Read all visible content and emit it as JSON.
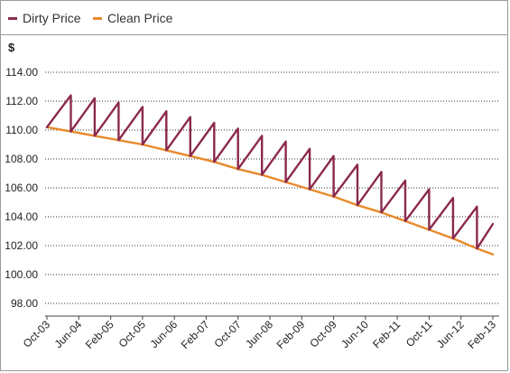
{
  "chart_data": {
    "type": "line",
    "ylabel": "$",
    "y_ticks": [
      "114.00",
      "112.00",
      "110.00",
      "108.00",
      "106.00",
      "104.00",
      "102.00",
      "100.00",
      "98.00"
    ],
    "ylim": [
      97,
      114.5
    ],
    "x_tick_labels": [
      "Oct-03",
      "Jun-04",
      "Feb-05",
      "Oct-05",
      "Jun-06",
      "Feb-07",
      "Oct-07",
      "Jun-08",
      "Feb-09",
      "Oct-09",
      "Jun-10",
      "Feb-11",
      "Oct-11",
      "Jun-12",
      "Feb-13"
    ],
    "grid": "horizontal dotted",
    "legend_position": "top",
    "series": [
      {
        "name": "Dirty Price",
        "color": "#8b2a4e",
        "x": [
          "Oct-03",
          "Jan-04",
          "Apr-04",
          "Apr-04",
          "Oct-04",
          "Oct-04",
          "Apr-05",
          "Apr-05",
          "Oct-05",
          "Oct-05",
          "Apr-06",
          "Apr-06",
          "Oct-06",
          "Oct-06",
          "Apr-07",
          "Apr-07",
          "Oct-07",
          "Oct-07",
          "Apr-08",
          "Apr-08",
          "Oct-08",
          "Oct-08",
          "Apr-09",
          "Apr-09",
          "Oct-09",
          "Oct-09",
          "Apr-10",
          "Apr-10",
          "Oct-10",
          "Oct-10",
          "Apr-11",
          "Apr-11",
          "Oct-11",
          "Oct-11",
          "Apr-12",
          "Apr-12",
          "Oct-12",
          "Oct-12",
          "Feb-13"
        ],
        "y": [
          110.2,
          111.3,
          112.4,
          109.9,
          112.2,
          109.6,
          111.9,
          109.3,
          111.6,
          109.0,
          111.3,
          108.6,
          110.9,
          108.2,
          110.5,
          107.8,
          110.1,
          107.3,
          109.6,
          106.9,
          109.2,
          106.4,
          108.7,
          105.9,
          108.2,
          105.4,
          107.6,
          104.8,
          107.1,
          104.3,
          106.5,
          103.7,
          105.9,
          103.1,
          105.3,
          102.5,
          104.7,
          101.8,
          103.5
        ]
      },
      {
        "name": "Clean Price",
        "color": "#e8892b",
        "x": [
          "Oct-03",
          "Apr-04",
          "Oct-04",
          "Apr-05",
          "Oct-05",
          "Apr-06",
          "Oct-06",
          "Apr-07",
          "Oct-07",
          "Apr-08",
          "Oct-08",
          "Apr-09",
          "Oct-09",
          "Apr-10",
          "Oct-10",
          "Apr-11",
          "Oct-11",
          "Apr-12",
          "Oct-12",
          "Feb-13"
        ],
        "y": [
          110.2,
          109.9,
          109.6,
          109.3,
          109.0,
          108.6,
          108.2,
          107.8,
          107.3,
          106.9,
          106.4,
          105.9,
          105.4,
          104.8,
          104.3,
          103.7,
          103.1,
          102.5,
          101.8,
          101.4
        ]
      }
    ]
  }
}
